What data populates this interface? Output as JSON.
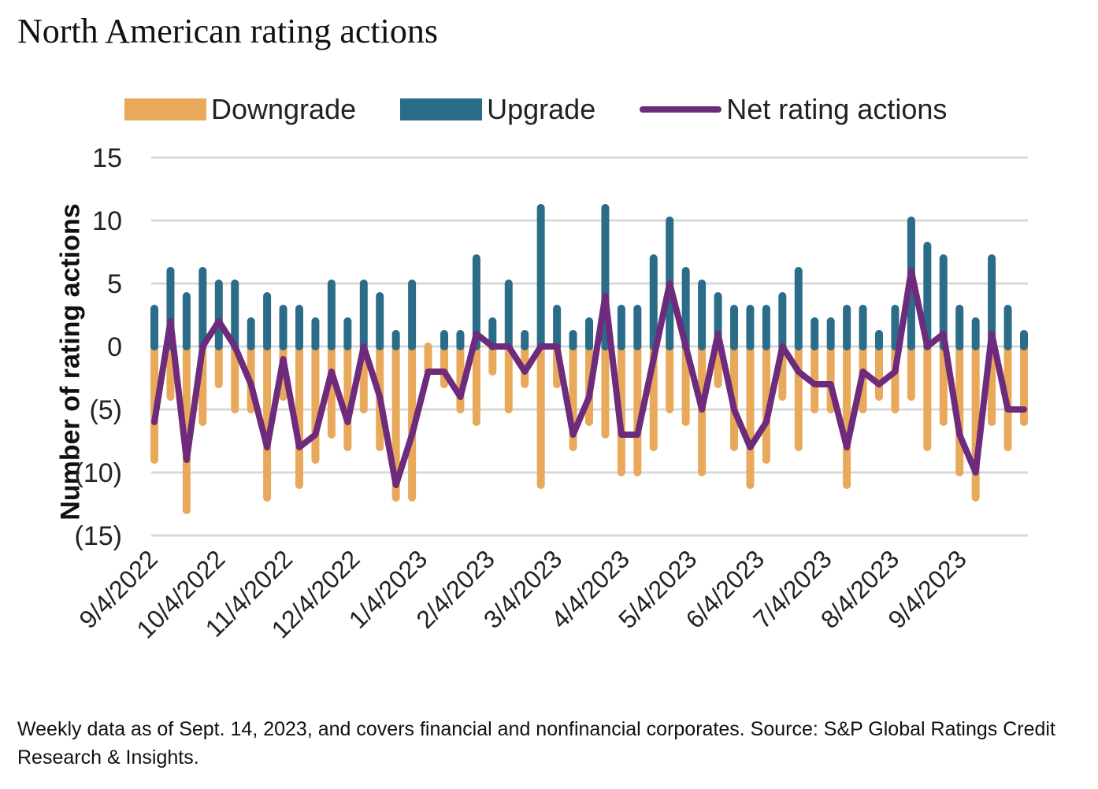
{
  "chart_data": {
    "type": "bar",
    "title": "North American rating actions",
    "ylabel": "Number of rating actions",
    "xlabel": "",
    "ylim": [
      -15,
      15
    ],
    "yticks": [
      15,
      10,
      5,
      0,
      -5,
      -10,
      -15
    ],
    "ytick_labels": [
      "15",
      "10",
      "5",
      "0",
      "(5)",
      "(10)",
      "(15)"
    ],
    "x_tick_labels": [
      "9/4/2022",
      "10/4/2022",
      "11/4/2022",
      "12/4/2022",
      "1/4/2023",
      "2/4/2023",
      "3/4/2023",
      "4/4/2023",
      "5/4/2023",
      "6/4/2023",
      "7/4/2023",
      "8/4/2023",
      "9/4/2023"
    ],
    "grid": true,
    "legend_position": "top",
    "series": [
      {
        "name": "Downgrade",
        "color": "#E8A95B",
        "values": [
          -9,
          -4,
          -13,
          -6,
          -3,
          -5,
          -5,
          -12,
          -4,
          -11,
          -9,
          -7,
          -8,
          -5,
          -8,
          -12,
          -12,
          -2,
          -3,
          -5,
          -6,
          -2,
          -5,
          -3,
          -11,
          -3,
          -8,
          -6,
          -7,
          -10,
          -10,
          -8,
          -5,
          -6,
          -10,
          -3,
          -8,
          -11,
          -9,
          -4,
          -8,
          -5,
          -5,
          -11,
          -5,
          -4,
          -5,
          -4,
          -8,
          -6,
          -10,
          -12,
          -6,
          -8,
          -6
        ]
      },
      {
        "name": "Upgrade",
        "color": "#2B6C88",
        "values": [
          3,
          6,
          4,
          6,
          5,
          5,
          2,
          4,
          3,
          3,
          2,
          5,
          2,
          5,
          4,
          1,
          5,
          0,
          1,
          1,
          7,
          2,
          5,
          1,
          11,
          3,
          1,
          2,
          11,
          3,
          3,
          7,
          10,
          6,
          5,
          4,
          3,
          3,
          3,
          4,
          6,
          2,
          2,
          3,
          3,
          1,
          3,
          10,
          8,
          7,
          3,
          2,
          7,
          3,
          1
        ]
      },
      {
        "name": "Net rating actions",
        "color": "#6E2A7B",
        "type": "line",
        "values": [
          -6,
          2,
          -9,
          0,
          2,
          0,
          -3,
          -8,
          -1,
          -8,
          -7,
          -2,
          -6,
          0,
          -4,
          -11,
          -7,
          -2,
          -2,
          -4,
          1,
          0,
          0,
          -2,
          0,
          0,
          -7,
          -4,
          4,
          -7,
          -7,
          -1,
          5,
          0,
          -5,
          1,
          -5,
          -8,
          -6,
          0,
          -2,
          -3,
          -3,
          -8,
          -2,
          -3,
          -2,
          6,
          0,
          1,
          -7,
          -10,
          1,
          -5,
          -5
        ]
      }
    ]
  },
  "footnote": "Weekly data as of Sept. 14, 2023, and covers financial and nonfinancial corporates. Source: S&P Global Ratings Credit Research & Insights."
}
